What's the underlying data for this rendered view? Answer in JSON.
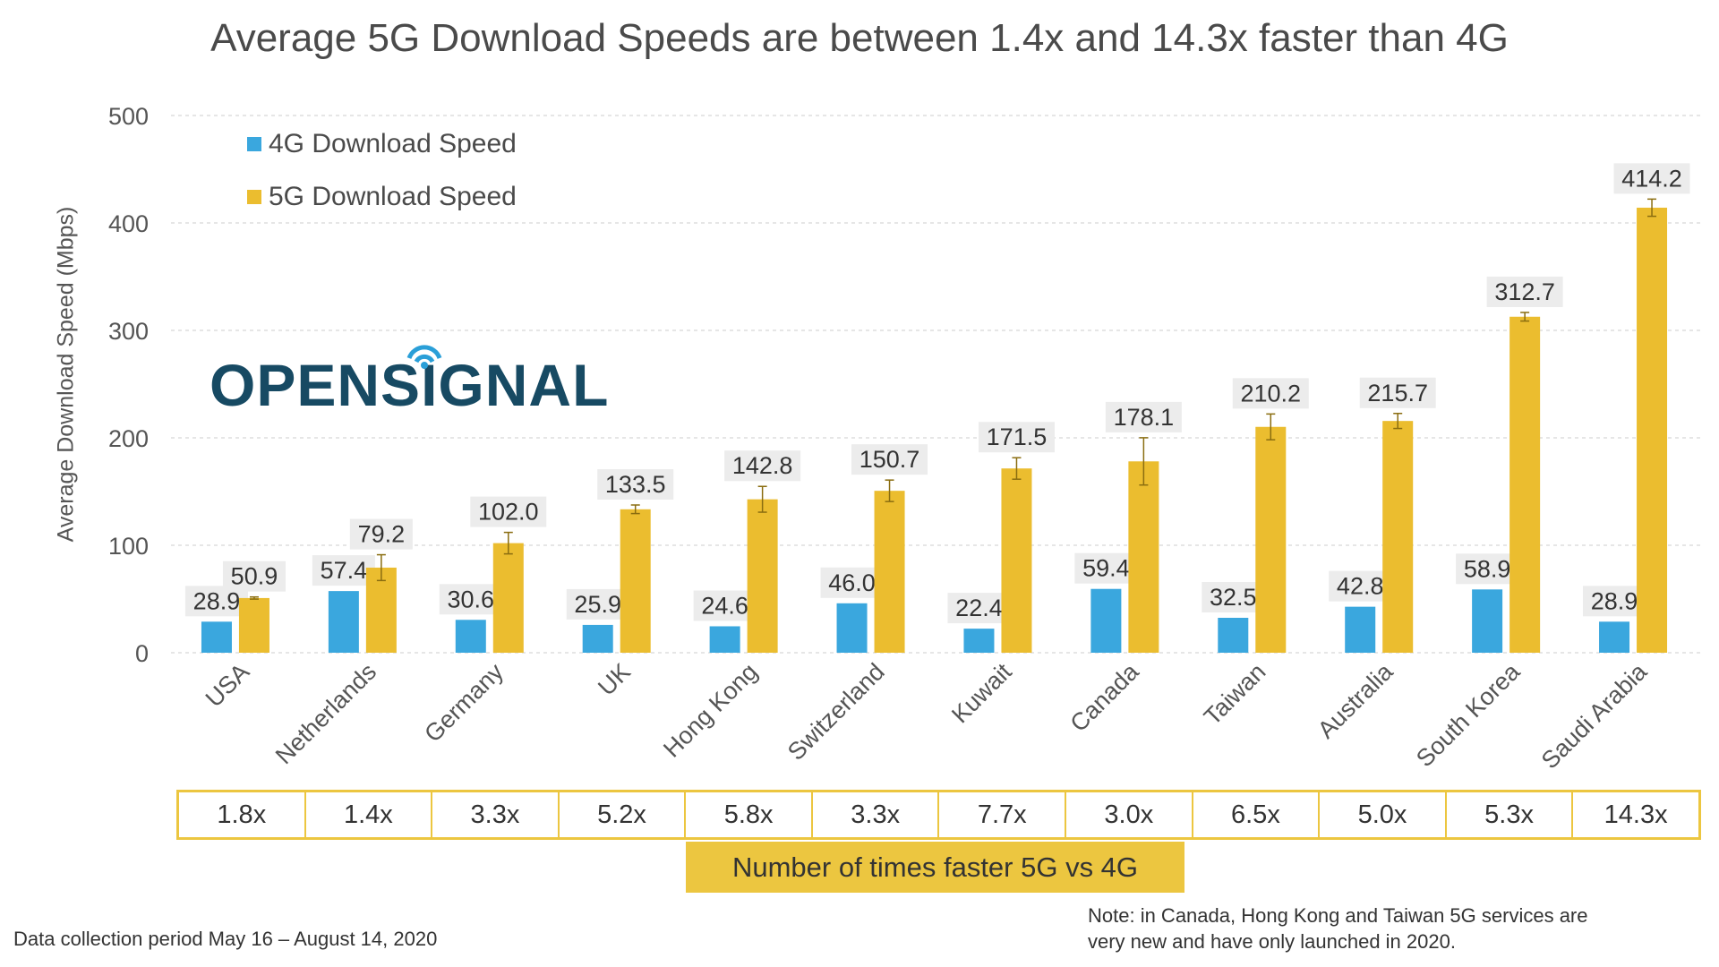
{
  "chart_data": {
    "type": "bar",
    "title": "Average 5G Download Speeds are between 1.4x and 14.3x faster than 4G",
    "ylabel": "Average Download Speed (Mbps)",
    "ylim": [
      0,
      500
    ],
    "yticks": [
      "0",
      "100",
      "200",
      "300",
      "400",
      "500"
    ],
    "grid": true,
    "legend_position": "top-left",
    "categories": [
      "USA",
      "Netherlands",
      "Germany",
      "UK",
      "Hong Kong",
      "Switzerland",
      "Kuwait",
      "Canada",
      "Taiwan",
      "Australia",
      "South Korea",
      "Saudi Arabia"
    ],
    "series": [
      {
        "name": "4G Download Speed",
        "color": "#3aa7de",
        "values": [
          28.9,
          57.4,
          30.6,
          25.9,
          24.6,
          46.0,
          22.4,
          59.4,
          32.5,
          42.8,
          58.9,
          28.9
        ],
        "labels": [
          "28.9",
          "57.4",
          "30.6",
          "25.9",
          "24.6",
          "46.0",
          "22.4",
          "59.4",
          "32.5",
          "42.8",
          "58.9",
          "28.9"
        ]
      },
      {
        "name": "5G Download Speed",
        "color": "#ebbd2f",
        "values": [
          50.9,
          79.2,
          102.0,
          133.5,
          142.8,
          150.7,
          171.5,
          178.1,
          210.2,
          215.7,
          312.7,
          414.2
        ],
        "labels": [
          "50.9",
          "79.2",
          "102.0",
          "133.5",
          "142.8",
          "150.7",
          "171.5",
          "178.1",
          "210.2",
          "215.7",
          "312.7",
          "414.2"
        ],
        "error": [
          1,
          12,
          10,
          4,
          12,
          10,
          10,
          22,
          12,
          7,
          4,
          8
        ]
      }
    ],
    "multipliers": [
      "1.8x",
      "1.4x",
      "3.3x",
      "5.2x",
      "5.8x",
      "3.3x",
      "7.7x",
      "3.0x",
      "6.5x",
      "5.0x",
      "5.3x",
      "14.3x"
    ],
    "multiplier_label": "Number of times faster 5G vs 4G"
  },
  "logo": "OPENSIGNAL",
  "footnote": "Data collection period May 16 – August 14, 2020",
  "note_line1": "Note: in Canada, Hong Kong and Taiwan 5G services are",
  "note_line2": "very new and have only launched in 2020."
}
